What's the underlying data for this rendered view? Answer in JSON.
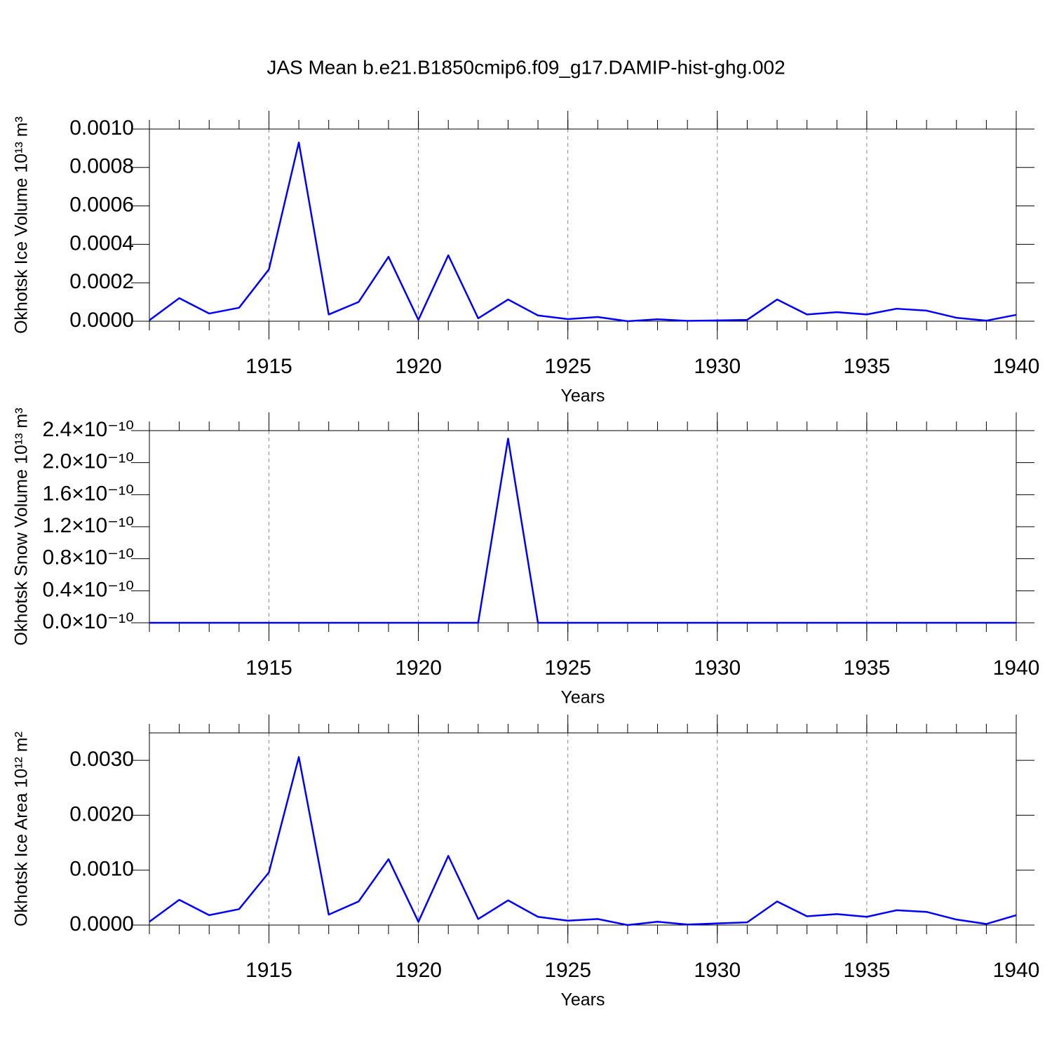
{
  "title": "JAS Mean b.e21.B1850cmip6.f09_g17.DAMIP-hist-ghg.002",
  "chart_data": [
    {
      "type": "line",
      "x_label": "Years",
      "y_label": "Okhotsk Ice Volume 10¹³ m³",
      "x": [
        1911,
        1912,
        1913,
        1914,
        1915,
        1916,
        1917,
        1918,
        1919,
        1920,
        1921,
        1922,
        1923,
        1924,
        1925,
        1926,
        1927,
        1928,
        1929,
        1930,
        1931,
        1932,
        1933,
        1934,
        1935,
        1936,
        1937,
        1938,
        1939,
        1940
      ],
      "series": [
        {
          "color": "#0000ff",
          "values": [
            5e-06,
            0.00012,
            4e-05,
            7e-05,
            0.00027,
            0.00093,
            3.5e-05,
            0.0001,
            0.000335,
            7e-06,
            0.000343,
            1.5e-05,
            0.000113,
            3e-05,
            1.1e-05,
            2.2e-05,
            0.0,
            1e-05,
            2e-06,
            4e-06,
            7e-06,
            0.000113,
            3.5e-05,
            4.7e-05,
            3.5e-05,
            6.5e-05,
            5.5e-05,
            1.8e-05,
            3e-06,
            3.3e-05
          ]
        }
      ],
      "xlim": [
        1911,
        1940
      ],
      "xticks": [
        1915,
        1920,
        1925,
        1930,
        1935,
        1940
      ],
      "ylim": [
        0,
        0.001
      ],
      "yticks": [
        {
          "value": 0,
          "label": "0.0000"
        },
        {
          "value": 0.0002,
          "label": "0.0002"
        },
        {
          "value": 0.0004,
          "label": "0.0004"
        },
        {
          "value": 0.0006,
          "label": "0.0006"
        },
        {
          "value": 0.0008,
          "label": "0.0008"
        },
        {
          "value": 0.001,
          "label": "0.0010"
        }
      ],
      "grid": true
    },
    {
      "type": "line",
      "x_label": "Years",
      "y_label": "Okhotsk Snow Volume 10¹³ m³",
      "x": [
        1911,
        1912,
        1913,
        1914,
        1915,
        1916,
        1917,
        1918,
        1919,
        1920,
        1921,
        1922,
        1923,
        1924,
        1925,
        1926,
        1927,
        1928,
        1929,
        1930,
        1931,
        1932,
        1933,
        1934,
        1935,
        1936,
        1937,
        1938,
        1939,
        1940
      ],
      "series": [
        {
          "color": "#0000ff",
          "values": [
            0,
            0,
            0,
            0,
            0,
            0,
            0,
            0,
            0,
            0,
            0,
            0,
            2.3e-10,
            0,
            0,
            0,
            0,
            0,
            0,
            0,
            0,
            0,
            0,
            0,
            0,
            0,
            0,
            0,
            0,
            0
          ]
        }
      ],
      "xlim": [
        1911,
        1940
      ],
      "xticks": [
        1915,
        1920,
        1925,
        1930,
        1935,
        1940
      ],
      "ylim": [
        0,
        2.4e-10
      ],
      "yticks": [
        {
          "value": 0,
          "label": "0.0×10⁻¹⁰"
        },
        {
          "value": 4e-11,
          "label": "0.4×10⁻¹⁰"
        },
        {
          "value": 8e-11,
          "label": "0.8×10⁻¹⁰"
        },
        {
          "value": 1.2e-10,
          "label": "1.2×10⁻¹⁰"
        },
        {
          "value": 1.6e-10,
          "label": "1.6×10⁻¹⁰"
        },
        {
          "value": 2e-10,
          "label": "2.0×10⁻¹⁰"
        },
        {
          "value": 2.4e-10,
          "label": "2.4×10⁻¹⁰"
        }
      ],
      "grid": true
    },
    {
      "type": "line",
      "x_label": "Years",
      "y_label": "Okhotsk Ice Area 10¹² m²",
      "x": [
        1911,
        1912,
        1913,
        1914,
        1915,
        1916,
        1917,
        1918,
        1919,
        1920,
        1921,
        1922,
        1923,
        1924,
        1925,
        1926,
        1927,
        1928,
        1929,
        1930,
        1931,
        1932,
        1933,
        1934,
        1935,
        1936,
        1937,
        1938,
        1939,
        1940
      ],
      "series": [
        {
          "color": "#0000ff",
          "values": [
            6e-05,
            0.00046,
            0.00018,
            0.00029,
            0.00096,
            0.00306,
            0.00019,
            0.00043,
            0.0012,
            6e-05,
            0.00126,
            0.00011,
            0.00045,
            0.00015,
            8e-05,
            0.00011,
            0.0,
            6e-05,
            1e-05,
            3e-05,
            5e-05,
            0.00043,
            0.00016,
            0.0002,
            0.00015,
            0.00027,
            0.00024,
            0.0001,
            2e-05,
            0.00018
          ]
        }
      ],
      "xlim": [
        1911,
        1940
      ],
      "xticks": [
        1915,
        1920,
        1925,
        1930,
        1935,
        1940
      ],
      "ylim": [
        0,
        0.0035
      ],
      "yticks": [
        {
          "value": 0,
          "label": "0.0000"
        },
        {
          "value": 0.001,
          "label": "0.0010"
        },
        {
          "value": 0.002,
          "label": "0.0020"
        },
        {
          "value": 0.003,
          "label": "0.0030"
        }
      ],
      "grid": true
    }
  ]
}
